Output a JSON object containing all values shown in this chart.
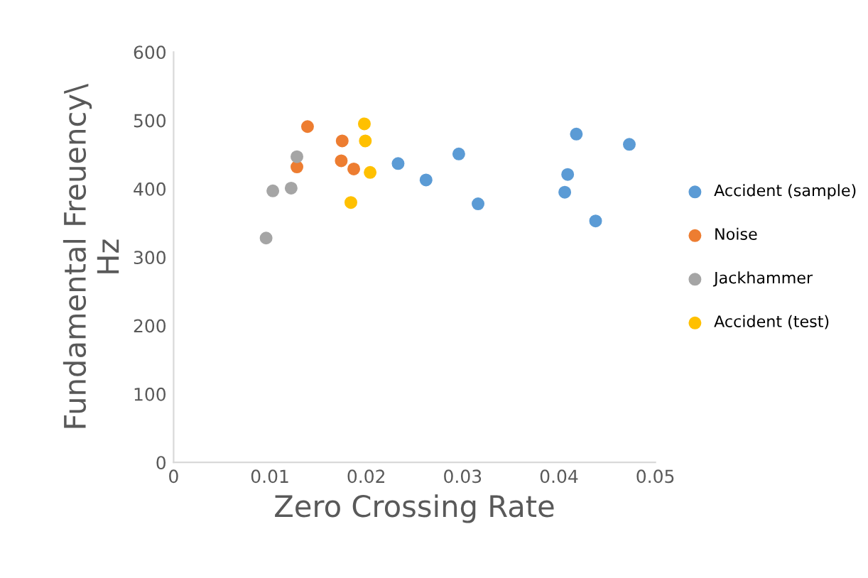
{
  "chart_data": {
    "type": "scatter",
    "xlabel": "Zero Crossing Rate",
    "ylabel": "Fundamental Freuency\\\nHz",
    "xlim": [
      0,
      0.05
    ],
    "ylim": [
      0,
      600
    ],
    "xticks": [
      0,
      0.01,
      0.02,
      0.03,
      0.04,
      0.05
    ],
    "yticks": [
      0,
      100,
      200,
      300,
      400,
      500,
      600
    ],
    "grid": false,
    "legend": "right",
    "marker": "circle",
    "series": [
      {
        "name": "Accident (sample)",
        "color": "#5b9bd5",
        "x": [
          0.0233,
          0.0262,
          0.0296,
          0.0316,
          0.0418,
          0.0409,
          0.0406,
          0.0438,
          0.0473
        ],
        "values": [
          437,
          413,
          451,
          378,
          480,
          421,
          395,
          353,
          465
        ]
      },
      {
        "name": "Noise",
        "color": "#ed7d31",
        "x": [
          0.0139,
          0.0128,
          0.0175,
          0.0174,
          0.0187
        ],
        "values": [
          491,
          432,
          470,
          441,
          429
        ]
      },
      {
        "name": "Jackhammer",
        "color": "#a5a5a5",
        "x": [
          0.0096,
          0.0103,
          0.0122,
          0.0128
        ],
        "values": [
          328,
          397,
          401,
          447
        ]
      },
      {
        "name": "Accident (test)",
        "color": "#ffc000",
        "x": [
          0.0198,
          0.0199,
          0.0204,
          0.0184
        ],
        "values": [
          495,
          470,
          424,
          380
        ]
      }
    ]
  }
}
